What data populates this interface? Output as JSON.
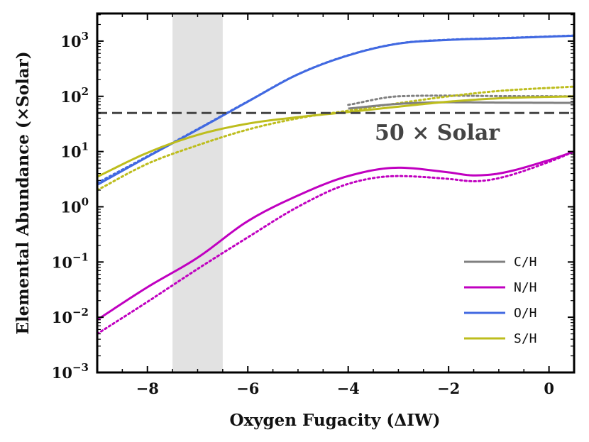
{
  "chart_data": {
    "type": "line",
    "title": "",
    "xlabel": "Oxygen Fugacity (ΔIW)",
    "ylabel": "Elemental Abundance (×Solar)",
    "xlim": [
      -9,
      0.5
    ],
    "ylim_log10": [
      -3,
      3.5
    ],
    "yscale": "log",
    "x_ticks": [
      -8,
      -6,
      -4,
      -2,
      0
    ],
    "x_tick_labels": [
      "−8",
      "−6",
      "−4",
      "−2",
      "0"
    ],
    "y_ticks": [
      {
        "value": -3,
        "base": "10",
        "exp": "−3"
      },
      {
        "value": -2,
        "base": "10",
        "exp": "−2"
      },
      {
        "value": -1,
        "base": "10",
        "exp": "−1"
      },
      {
        "value": 0,
        "base": "10",
        "exp": "0"
      },
      {
        "value": 1,
        "base": "10",
        "exp": "1"
      },
      {
        "value": 2,
        "base": "10",
        "exp": "2"
      },
      {
        "value": 3,
        "base": "10",
        "exp": "3"
      }
    ],
    "shaded_region_x": [
      -7.5,
      -6.5
    ],
    "reference_line": {
      "value": 50,
      "label": "50 × Solar"
    },
    "legend_position": "lower-right",
    "legend_style": "solid = primary, dotted = alternate model",
    "series": [
      {
        "name": "C/H",
        "color": "#808080",
        "solid_x": [
          -4,
          -3,
          -2,
          -1,
          0.5
        ],
        "solid_y": [
          60,
          73,
          78,
          77,
          76
        ],
        "dotted_x": [
          -4,
          -3,
          -2,
          -1,
          0.5
        ],
        "dotted_y": [
          70,
          100,
          103,
          101,
          100
        ]
      },
      {
        "name": "N/H",
        "color": "#c000c0",
        "solid_x": [
          -9,
          -8,
          -7,
          -6,
          -5,
          -4,
          -3,
          -2,
          -1.5,
          -1,
          0,
          0.5
        ],
        "solid_y": [
          0.009,
          0.035,
          0.12,
          0.55,
          1.6,
          3.6,
          5.1,
          4.2,
          3.7,
          4.0,
          7.0,
          10
        ],
        "dotted_x": [
          -9,
          -8,
          -7,
          -6,
          -5,
          -4,
          -3,
          -2,
          -1.5,
          -1,
          0,
          0.5
        ],
        "dotted_y": [
          0.005,
          0.019,
          0.075,
          0.28,
          1.0,
          2.6,
          3.6,
          3.2,
          2.9,
          3.3,
          6.5,
          10
        ]
      },
      {
        "name": "O/H",
        "color": "#4169e1",
        "solid_x": [
          -9,
          -8,
          -7,
          -6,
          -5,
          -4,
          -3,
          -2,
          -1,
          0.5
        ],
        "solid_y": [
          2.5,
          8,
          25,
          80,
          250,
          550,
          900,
          1050,
          1120,
          1250
        ],
        "dotted_x": [
          -9,
          -8,
          -7,
          -6,
          -5,
          -4,
          -3,
          -2,
          -1,
          0.5
        ],
        "dotted_y": [
          2.7,
          8.2,
          25.5,
          81,
          252,
          555,
          905,
          1060,
          1130,
          1260
        ]
      },
      {
        "name": "S/H",
        "color": "#bdbd1d",
        "solid_x": [
          -9,
          -8,
          -7,
          -6,
          -5,
          -4,
          -3,
          -2,
          -1,
          0.5
        ],
        "solid_y": [
          3.5,
          9.5,
          20,
          32,
          42,
          52,
          65,
          80,
          92,
          100
        ],
        "dotted_x": [
          -9,
          -8,
          -7,
          -6,
          -5,
          -4,
          -3,
          -2,
          -1,
          0.5
        ],
        "dotted_y": [
          2,
          6,
          13,
          25,
          40,
          55,
          75,
          100,
          125,
          150
        ]
      }
    ]
  }
}
